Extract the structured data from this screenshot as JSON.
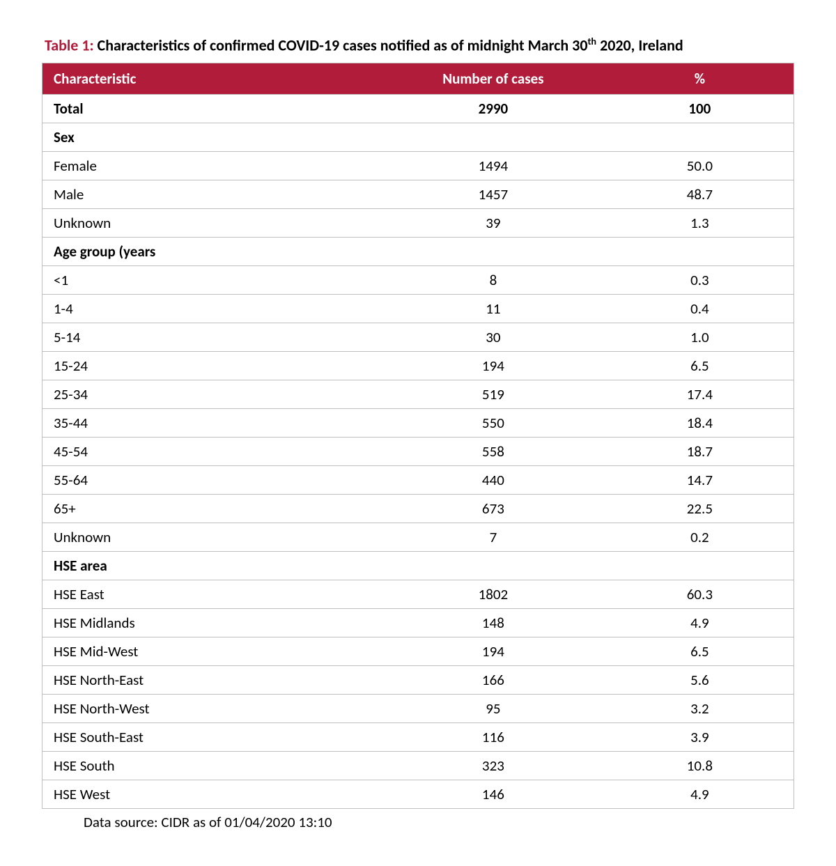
{
  "caption": {
    "lead": "Table 1:",
    "rest_pre": " Characteristics of confirmed COVID-19 cases notified as of midnight March 30",
    "sup": "th",
    "rest_post": " 2020, Ireland"
  },
  "columns": [
    "Characteristic",
    "Number of cases",
    "%"
  ],
  "rows": [
    {
      "type": "total",
      "label": "Total",
      "cases": "2990",
      "pct": "100"
    },
    {
      "type": "section",
      "label": "Sex",
      "cases": "",
      "pct": ""
    },
    {
      "type": "data",
      "label": "Female",
      "cases": "1494",
      "pct": "50.0"
    },
    {
      "type": "data",
      "label": "Male",
      "cases": "1457",
      "pct": "48.7"
    },
    {
      "type": "data",
      "label": "Unknown",
      "cases": "39",
      "pct": "1.3"
    },
    {
      "type": "section",
      "label": "Age group (years",
      "cases": "",
      "pct": ""
    },
    {
      "type": "data",
      "label": "<1",
      "cases": "8",
      "pct": "0.3"
    },
    {
      "type": "data",
      "label": "1-4",
      "cases": "11",
      "pct": "0.4"
    },
    {
      "type": "data",
      "label": "5-14",
      "cases": "30",
      "pct": "1.0"
    },
    {
      "type": "data",
      "label": "15-24",
      "cases": "194",
      "pct": "6.5"
    },
    {
      "type": "data",
      "label": "25-34",
      "cases": "519",
      "pct": "17.4"
    },
    {
      "type": "data",
      "label": "35-44",
      "cases": "550",
      "pct": "18.4"
    },
    {
      "type": "data",
      "label": "45-54",
      "cases": "558",
      "pct": "18.7"
    },
    {
      "type": "data",
      "label": "55-64",
      "cases": "440",
      "pct": "14.7"
    },
    {
      "type": "data",
      "label": "65+",
      "cases": "673",
      "pct": "22.5"
    },
    {
      "type": "data",
      "label": "Unknown",
      "cases": "7",
      "pct": "0.2"
    },
    {
      "type": "section",
      "label": "HSE area",
      "cases": "",
      "pct": ""
    },
    {
      "type": "data",
      "label": "HSE East",
      "cases": "1802",
      "pct": "60.3"
    },
    {
      "type": "data",
      "label": "HSE Midlands",
      "cases": "148",
      "pct": "4.9"
    },
    {
      "type": "data",
      "label": "HSE Mid-West",
      "cases": "194",
      "pct": "6.5"
    },
    {
      "type": "data",
      "label": "HSE North-East",
      "cases": "166",
      "pct": "5.6"
    },
    {
      "type": "data",
      "label": "HSE North-West",
      "cases": "95",
      "pct": "3.2"
    },
    {
      "type": "data",
      "label": "HSE South-East",
      "cases": "116",
      "pct": "3.9"
    },
    {
      "type": "data",
      "label": "HSE South",
      "cases": "323",
      "pct": "10.8"
    },
    {
      "type": "data",
      "label": "HSE West",
      "cases": "146",
      "pct": "4.9"
    }
  ],
  "source_note": "Data source: CIDR as of 01/04/2020 13:10",
  "style": {
    "header_bg": "#b01c3a",
    "header_fg": "#ffffff",
    "border_color": "#bfbfbf",
    "body_font_size_pt": 16,
    "caption_font_size_pt": 17
  }
}
